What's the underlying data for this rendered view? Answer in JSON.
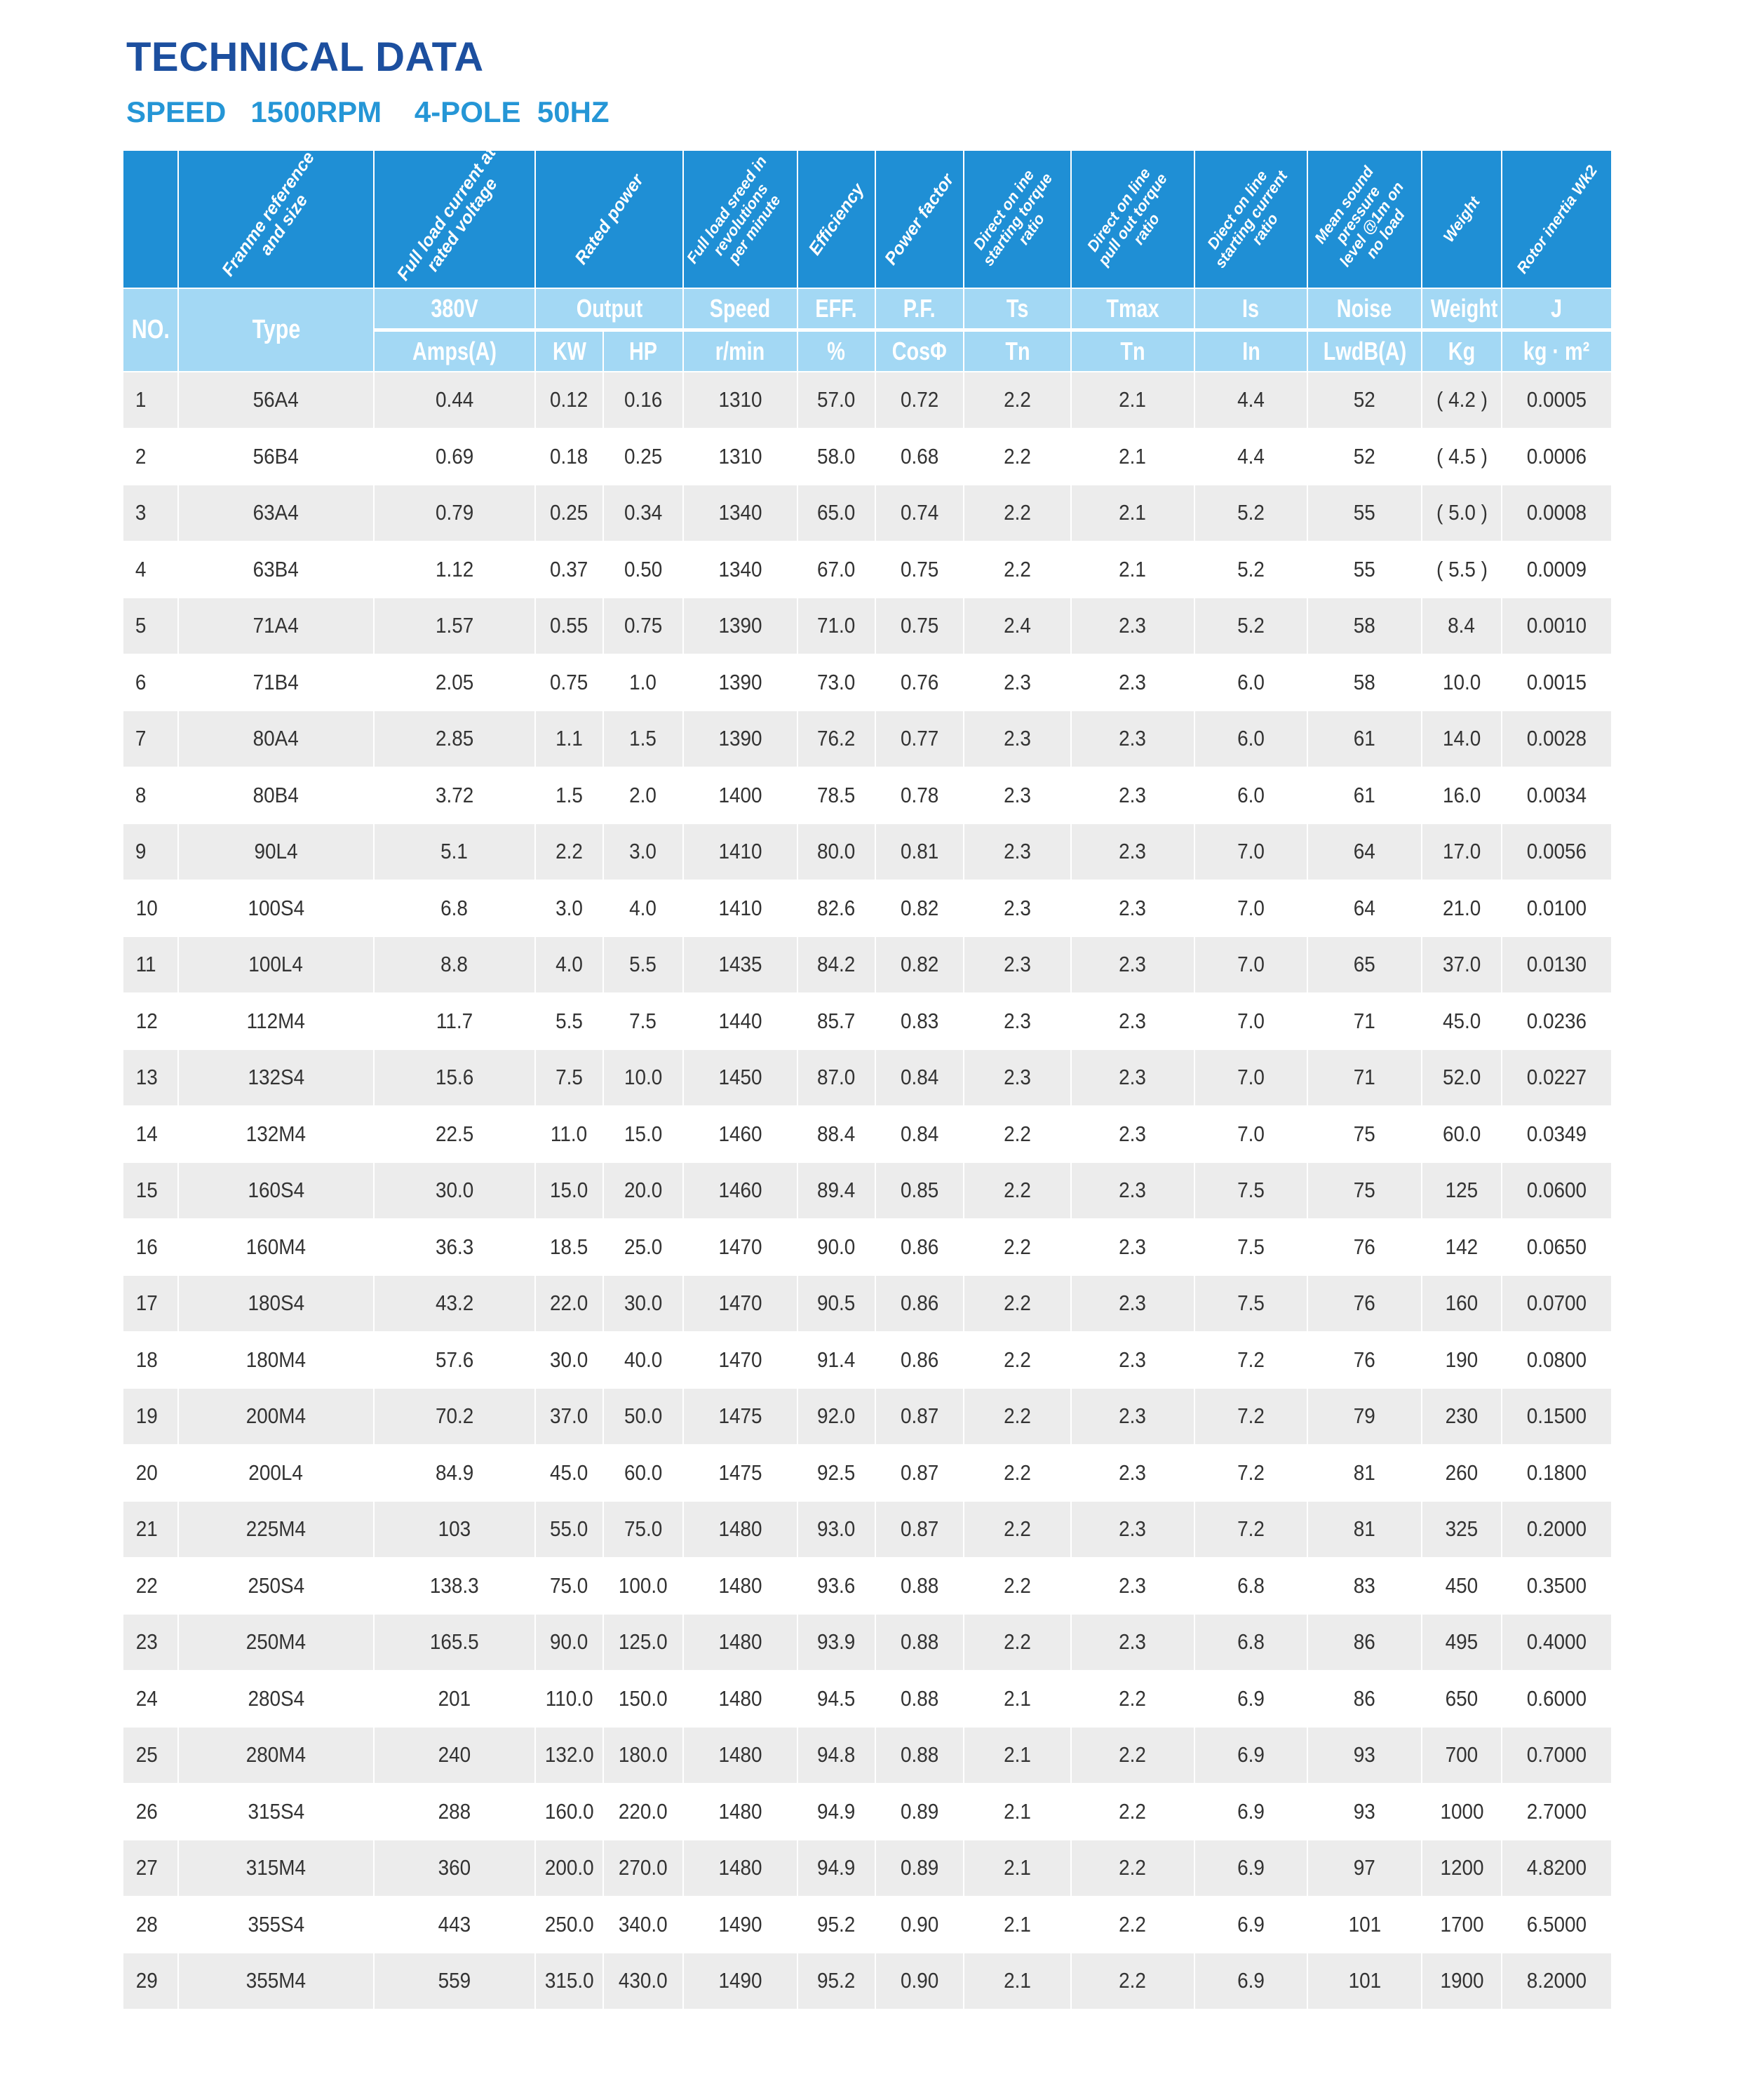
{
  "title": "TECHNICAL DATA",
  "subtitle": "SPEED   1500RPM    4-POLE  50HZ",
  "colors": {
    "title": "#1c4f9f",
    "subtitle": "#2596d6",
    "header_dark": "#1f8fd5",
    "header_light": "#a3d8f4",
    "row_stripe": "#ececec"
  },
  "header": {
    "descriptions": {
      "type": "Franme reference\nand size",
      "amps": "Full load current at\nrated voltage",
      "power": "Rated power",
      "speed": "Full load sreed in\nrevolutions\nper minute",
      "eff": "Efficiency",
      "pf": "Power factor",
      "ts": "Direct on ine\nstarting torque\nratio",
      "tmax": "Direct on line\npull out torque\nratio",
      "is": "Diect on line\nstarting current\nratio",
      "noise": "Mean sound\npressure\nlevel @1m on\nno load",
      "weight": "Weight",
      "j": "Rotor inertia Wk2"
    },
    "row1": {
      "no": "NO.",
      "type": "Type",
      "amps": "380V",
      "power": "Output",
      "speed": "Speed",
      "eff": "EFF.",
      "pf": "P.F.",
      "ts": "Ts",
      "tmax": "Tmax",
      "is": "Is",
      "noise": "Noise",
      "weight": "Weight",
      "j": "J"
    },
    "row2": {
      "amps": "Amps(A)",
      "kw": "KW",
      "hp": "HP",
      "speed": "r/min",
      "eff": "%",
      "pf": "CosΦ",
      "ts": "Tn",
      "tmax": "Tn",
      "is": "In",
      "noise": "LwdB(A)",
      "weight": "Kg",
      "j": "kg · m²"
    }
  },
  "rows": [
    [
      "1",
      "56A4",
      "0.44",
      "0.12",
      "0.16",
      "1310",
      "57.0",
      "0.72",
      "2.2",
      "2.1",
      "4.4",
      "52",
      "( 4.2 )",
      "0.0005"
    ],
    [
      "2",
      "56B4",
      "0.69",
      "0.18",
      "0.25",
      "1310",
      "58.0",
      "0.68",
      "2.2",
      "2.1",
      "4.4",
      "52",
      "( 4.5 )",
      "0.0006"
    ],
    [
      "3",
      "63A4",
      "0.79",
      "0.25",
      "0.34",
      "1340",
      "65.0",
      "0.74",
      "2.2",
      "2.1",
      "5.2",
      "55",
      "( 5.0 )",
      "0.0008"
    ],
    [
      "4",
      "63B4",
      "1.12",
      "0.37",
      "0.50",
      "1340",
      "67.0",
      "0.75",
      "2.2",
      "2.1",
      "5.2",
      "55",
      "( 5.5 )",
      "0.0009"
    ],
    [
      "5",
      "71A4",
      "1.57",
      "0.55",
      "0.75",
      "1390",
      "71.0",
      "0.75",
      "2.4",
      "2.3",
      "5.2",
      "58",
      "8.4",
      "0.0010"
    ],
    [
      "6",
      "71B4",
      "2.05",
      "0.75",
      "1.0",
      "1390",
      "73.0",
      "0.76",
      "2.3",
      "2.3",
      "6.0",
      "58",
      "10.0",
      "0.0015"
    ],
    [
      "7",
      "80A4",
      "2.85",
      "1.1",
      "1.5",
      "1390",
      "76.2",
      "0.77",
      "2.3",
      "2.3",
      "6.0",
      "61",
      "14.0",
      "0.0028"
    ],
    [
      "8",
      "80B4",
      "3.72",
      "1.5",
      "2.0",
      "1400",
      "78.5",
      "0.78",
      "2.3",
      "2.3",
      "6.0",
      "61",
      "16.0",
      "0.0034"
    ],
    [
      "9",
      "90L4",
      "5.1",
      "2.2",
      "3.0",
      "1410",
      "80.0",
      "0.81",
      "2.3",
      "2.3",
      "7.0",
      "64",
      "17.0",
      "0.0056"
    ],
    [
      "10",
      "100S4",
      "6.8",
      "3.0",
      "4.0",
      "1410",
      "82.6",
      "0.82",
      "2.3",
      "2.3",
      "7.0",
      "64",
      "21.0",
      "0.0100"
    ],
    [
      "11",
      "100L4",
      "8.8",
      "4.0",
      "5.5",
      "1435",
      "84.2",
      "0.82",
      "2.3",
      "2.3",
      "7.0",
      "65",
      "37.0",
      "0.0130"
    ],
    [
      "12",
      "112M4",
      "11.7",
      "5.5",
      "7.5",
      "1440",
      "85.7",
      "0.83",
      "2.3",
      "2.3",
      "7.0",
      "71",
      "45.0",
      "0.0236"
    ],
    [
      "13",
      "132S4",
      "15.6",
      "7.5",
      "10.0",
      "1450",
      "87.0",
      "0.84",
      "2.3",
      "2.3",
      "7.0",
      "71",
      "52.0",
      "0.0227"
    ],
    [
      "14",
      "132M4",
      "22.5",
      "11.0",
      "15.0",
      "1460",
      "88.4",
      "0.84",
      "2.2",
      "2.3",
      "7.0",
      "75",
      "60.0",
      "0.0349"
    ],
    [
      "15",
      "160S4",
      "30.0",
      "15.0",
      "20.0",
      "1460",
      "89.4",
      "0.85",
      "2.2",
      "2.3",
      "7.5",
      "75",
      "125",
      "0.0600"
    ],
    [
      "16",
      "160M4",
      "36.3",
      "18.5",
      "25.0",
      "1470",
      "90.0",
      "0.86",
      "2.2",
      "2.3",
      "7.5",
      "76",
      "142",
      "0.0650"
    ],
    [
      "17",
      "180S4",
      "43.2",
      "22.0",
      "30.0",
      "1470",
      "90.5",
      "0.86",
      "2.2",
      "2.3",
      "7.5",
      "76",
      "160",
      "0.0700"
    ],
    [
      "18",
      "180M4",
      "57.6",
      "30.0",
      "40.0",
      "1470",
      "91.4",
      "0.86",
      "2.2",
      "2.3",
      "7.2",
      "76",
      "190",
      "0.0800"
    ],
    [
      "19",
      "200M4",
      "70.2",
      "37.0",
      "50.0",
      "1475",
      "92.0",
      "0.87",
      "2.2",
      "2.3",
      "7.2",
      "79",
      "230",
      "0.1500"
    ],
    [
      "20",
      "200L4",
      "84.9",
      "45.0",
      "60.0",
      "1475",
      "92.5",
      "0.87",
      "2.2",
      "2.3",
      "7.2",
      "81",
      "260",
      "0.1800"
    ],
    [
      "21",
      "225M4",
      "103",
      "55.0",
      "75.0",
      "1480",
      "93.0",
      "0.87",
      "2.2",
      "2.3",
      "7.2",
      "81",
      "325",
      "0.2000"
    ],
    [
      "22",
      "250S4",
      "138.3",
      "75.0",
      "100.0",
      "1480",
      "93.6",
      "0.88",
      "2.2",
      "2.3",
      "6.8",
      "83",
      "450",
      "0.3500"
    ],
    [
      "23",
      "250M4",
      "165.5",
      "90.0",
      "125.0",
      "1480",
      "93.9",
      "0.88",
      "2.2",
      "2.3",
      "6.8",
      "86",
      "495",
      "0.4000"
    ],
    [
      "24",
      "280S4",
      "201",
      "110.0",
      "150.0",
      "1480",
      "94.5",
      "0.88",
      "2.1",
      "2.2",
      "6.9",
      "86",
      "650",
      "0.6000"
    ],
    [
      "25",
      "280M4",
      "240",
      "132.0",
      "180.0",
      "1480",
      "94.8",
      "0.88",
      "2.1",
      "2.2",
      "6.9",
      "93",
      "700",
      "0.7000"
    ],
    [
      "26",
      "315S4",
      "288",
      "160.0",
      "220.0",
      "1480",
      "94.9",
      "0.89",
      "2.1",
      "2.2",
      "6.9",
      "93",
      "1000",
      "2.7000"
    ],
    [
      "27",
      "315M4",
      "360",
      "200.0",
      "270.0",
      "1480",
      "94.9",
      "0.89",
      "2.1",
      "2.2",
      "6.9",
      "97",
      "1200",
      "4.8200"
    ],
    [
      "28",
      "355S4",
      "443",
      "250.0",
      "340.0",
      "1490",
      "95.2",
      "0.90",
      "2.1",
      "2.2",
      "6.9",
      "101",
      "1700",
      "6.5000"
    ],
    [
      "29",
      "355M4",
      "559",
      "315.0",
      "430.0",
      "1490",
      "95.2",
      "0.90",
      "2.1",
      "2.2",
      "6.9",
      "101",
      "1900",
      "8.2000"
    ]
  ]
}
